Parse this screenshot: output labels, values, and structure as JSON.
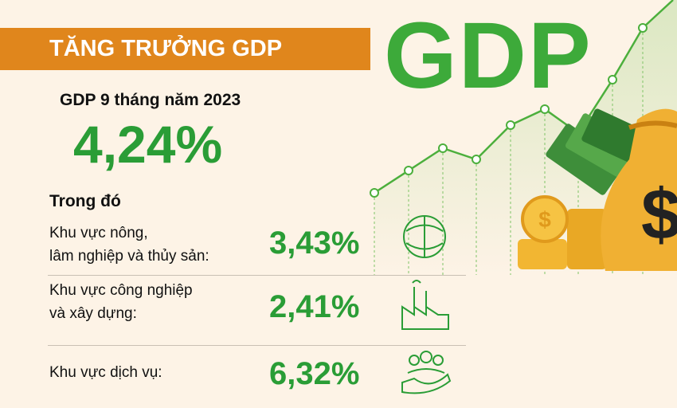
{
  "header": {
    "banner": "TĂNG TRƯỞNG GDP",
    "big_title": "GDP"
  },
  "summary": {
    "label": "GDP 9 tháng năm 2023",
    "value": "4,24%"
  },
  "breakdown": {
    "heading": "Trong đó",
    "rows": [
      {
        "label": [
          "Khu vực nông,",
          "lâm nghiệp và thủy sản:"
        ],
        "value": "3,43%"
      },
      {
        "label": [
          "Khu vực công nghiệp",
          "và xây dựng:"
        ],
        "value": "2,41%"
      },
      {
        "label": [
          "Khu vực dịch vụ:"
        ],
        "value": "6,32%"
      }
    ]
  }
}
